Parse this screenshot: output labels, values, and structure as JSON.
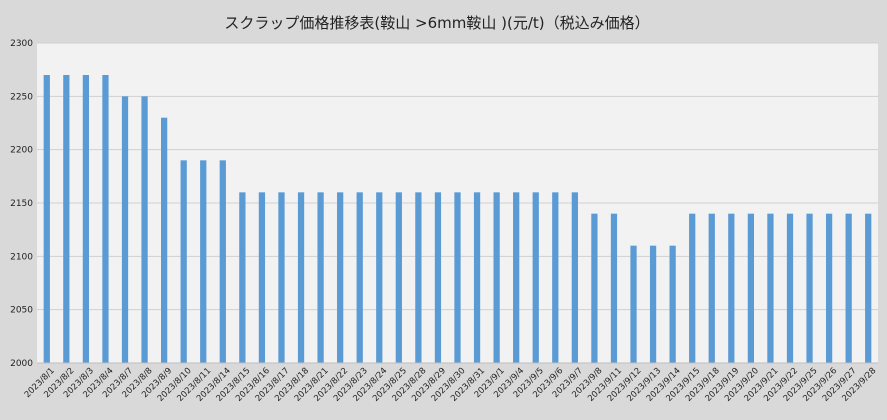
{
  "chart_data": {
    "type": "bar",
    "title": "スクラップ価格推移表(鞍山 >6mm鞍山 )(元/t)（税込み価格）",
    "xlabel": "",
    "ylabel": "",
    "ylim": [
      2000,
      2300
    ],
    "yticks": [
      2000,
      2050,
      2100,
      2150,
      2200,
      2250,
      2300
    ],
    "grid": true,
    "legend": "none",
    "bar_color": "#5b9bd5",
    "plot_background": "#f2f2f2",
    "categories": [
      "2023/8/1",
      "2023/8/2",
      "2023/8/3",
      "2023/8/4",
      "2023/8/7",
      "2023/8/8",
      "2023/8/9",
      "2023/8/10",
      "2023/8/11",
      "2023/8/14",
      "2023/8/15",
      "2023/8/16",
      "2023/8/17",
      "2023/8/18",
      "2023/8/21",
      "2023/8/22",
      "2023/8/23",
      "2023/8/24",
      "2023/8/25",
      "2023/8/28",
      "2023/8/29",
      "2023/8/30",
      "2023/8/31",
      "2023/9/1",
      "2023/9/4",
      "2023/9/5",
      "2023/9/6",
      "2023/9/7",
      "2023/9/8",
      "2023/9/11",
      "2023/9/12",
      "2023/9/13",
      "2023/9/14",
      "2023/9/15",
      "2023/9/18",
      "2023/9/19",
      "2023/9/20",
      "2023/9/21",
      "2023/9/22",
      "2023/9/25",
      "2023/9/26",
      "2023/9/27",
      "2023/9/28"
    ],
    "values": [
      2270,
      2270,
      2270,
      2270,
      2250,
      2250,
      2230,
      2190,
      2190,
      2190,
      2160,
      2160,
      2160,
      2160,
      2160,
      2160,
      2160,
      2160,
      2160,
      2160,
      2160,
      2160,
      2160,
      2160,
      2160,
      2160,
      2160,
      2160,
      2140,
      2140,
      2110,
      2110,
      2110,
      2140,
      2140,
      2140,
      2140,
      2140,
      2140,
      2140,
      2140,
      2140,
      2140
    ]
  }
}
